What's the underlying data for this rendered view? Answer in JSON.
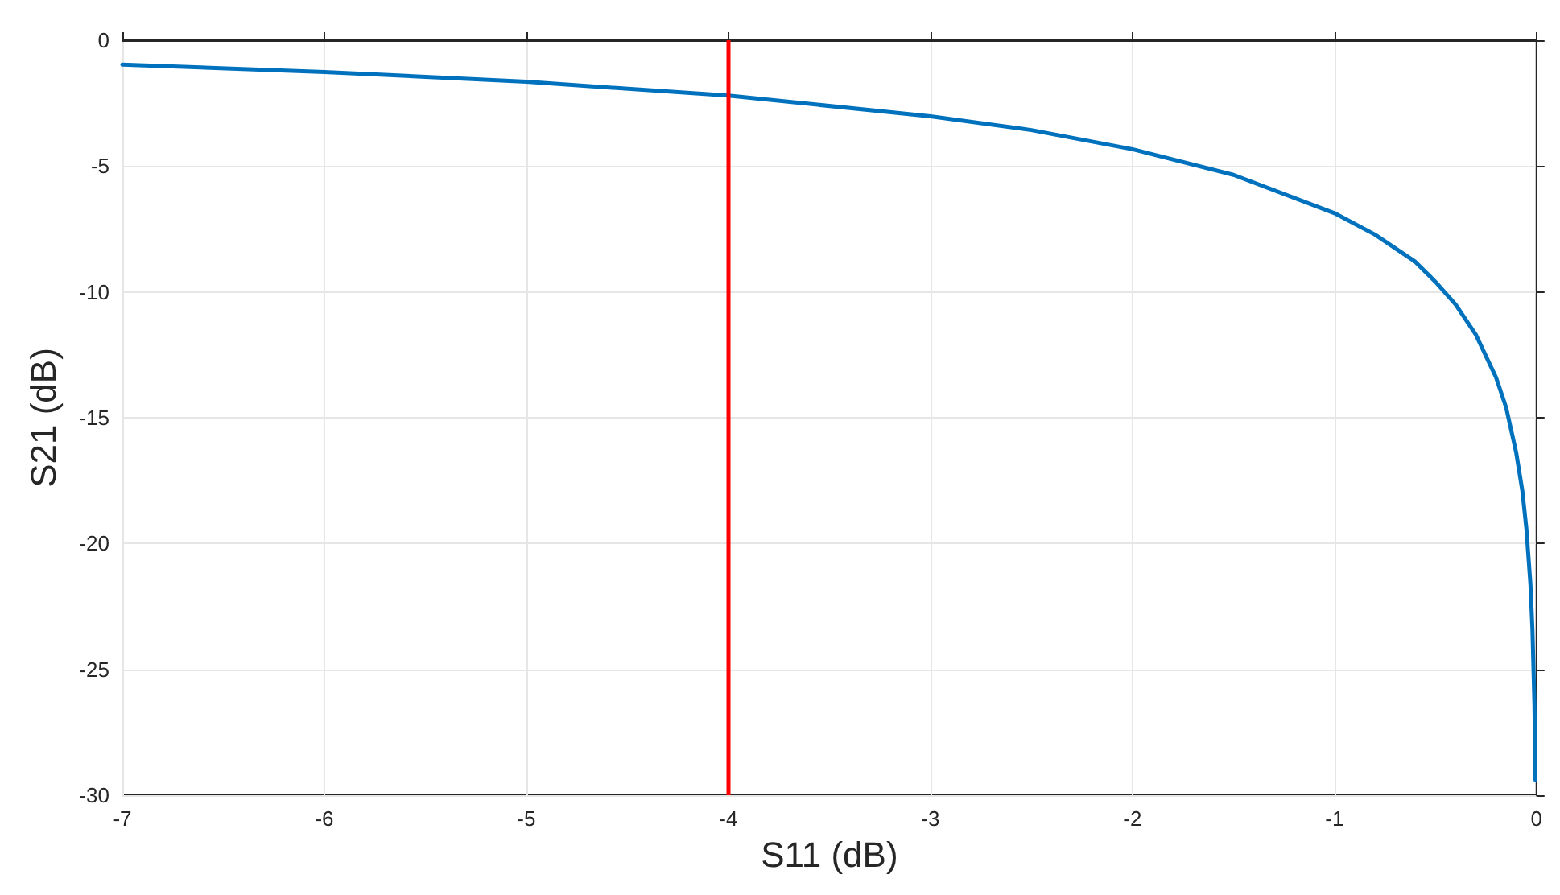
{
  "chart_data": {
    "type": "line",
    "xlabel": "S11 (dB)",
    "ylabel": "S21 (dB)",
    "x": [
      -7,
      -6,
      -5,
      -4,
      -3,
      -2.5,
      -2,
      -1.5,
      -1,
      -0.8,
      -0.6,
      -0.5,
      -0.4,
      -0.3,
      -0.2,
      -0.15,
      -0.1,
      -0.07,
      -0.05,
      -0.03,
      -0.02,
      -0.01,
      -0.005
    ],
    "series": [
      {
        "color": "#0072bd",
        "values": [
          -0.97,
          -1.26,
          -1.65,
          -2.2,
          -3.02,
          -3.57,
          -4.33,
          -5.35,
          -6.87,
          -7.72,
          -8.8,
          -9.6,
          -10.5,
          -11.7,
          -13.4,
          -14.6,
          -16.4,
          -17.9,
          -19.4,
          -21.6,
          -23.4,
          -26.4,
          -29.4
        ]
      }
    ],
    "xlim": [
      -7,
      0
    ],
    "xticks": [
      -7,
      -6,
      -5,
      -4,
      -3,
      -2,
      -1,
      0
    ],
    "ylim": [
      -30,
      0
    ],
    "yticks": [
      -30,
      -25,
      -20,
      -15,
      -10,
      -5,
      0
    ],
    "ref_lines": [
      {
        "axis": "x",
        "value": -4,
        "color": "#ff0000"
      }
    ],
    "grid": true,
    "marker": "none",
    "line_style": "solid"
  }
}
